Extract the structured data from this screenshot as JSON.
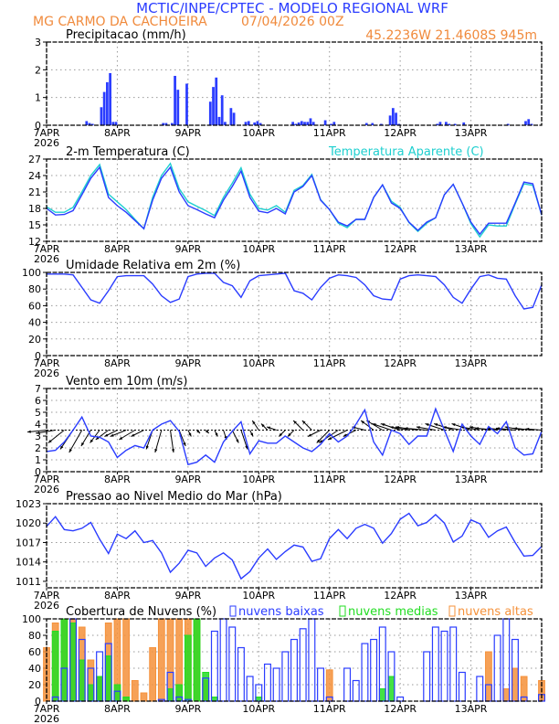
{
  "header": {
    "title": "MCTIC/INPE/CPTEC - MODELO REGIONAL WRF",
    "station": "MG CARMO DA CACHOEIRA",
    "run": "07/04/2026 00Z",
    "location": "45.2236W 21.4608S 945m"
  },
  "colors": {
    "blue": "#2a3cff",
    "cyan": "#1ecfcf",
    "green": "#22dd22",
    "orange": "#f5913a",
    "title_orange": "#f08a3c"
  },
  "x_axis": {
    "tick_labels": [
      "7APR",
      "8APR",
      "9APR",
      "10APR",
      "11APR",
      "12APR",
      "13APR"
    ],
    "year": "2026",
    "range_hours": [
      0,
      168
    ]
  },
  "chart_data": [
    {
      "type": "bar",
      "title": "Precipitacao (mm/h)",
      "ylim": [
        0,
        3
      ],
      "yticks": [
        "0",
        "1",
        "2",
        "3"
      ],
      "grid": true,
      "hours": [
        14,
        15,
        16,
        19,
        20,
        21,
        22,
        23,
        24,
        40,
        41,
        43,
        44,
        45,
        48,
        56,
        57,
        58,
        59,
        60,
        61,
        63,
        64,
        68,
        69,
        71,
        72,
        73,
        84,
        85,
        86,
        87,
        88,
        89,
        90,
        91,
        95,
        97,
        98,
        109,
        111,
        114,
        117,
        118,
        119,
        120,
        133,
        134,
        136,
        137,
        139,
        142,
        157,
        163,
        164,
        165
      ],
      "values": [
        0.15,
        0.08,
        0.05,
        0.65,
        1.2,
        1.55,
        1.88,
        0.12,
        0.12,
        0.08,
        0.08,
        0.08,
        1.78,
        1.28,
        1.5,
        0.85,
        1.38,
        1.72,
        0.3,
        1.08,
        0.12,
        0.62,
        0.45,
        0.12,
        0.15,
        0.1,
        0.15,
        0.08,
        0.12,
        0.05,
        0.1,
        0.15,
        0.12,
        0.12,
        0.25,
        0.12,
        0.18,
        0.05,
        0.12,
        0.08,
        0.08,
        0.05,
        0.35,
        0.62,
        0.45,
        0.05,
        0.05,
        0.12,
        0.12,
        0.05,
        0.05,
        0.1,
        0.05,
        0.15,
        0.22,
        0.05
      ]
    },
    {
      "type": "line",
      "title": "2-m Temperatura (C)",
      "ylim": [
        12,
        27
      ],
      "yticks": [
        "12",
        "15",
        "18",
        "21",
        "24",
        "27"
      ],
      "grid": true,
      "x_step_hours": 3,
      "series": [
        {
          "name": "2-m Temperatura (C)",
          "values": [
            18,
            16.8,
            16.9,
            17.6,
            20.5,
            23.5,
            25.5,
            20,
            18.5,
            17.3,
            15.8,
            14.3,
            19.5,
            23.5,
            25.5,
            21,
            18.5,
            17.8,
            17,
            16.3,
            19.5,
            22,
            24.8,
            20,
            17.5,
            17.2,
            18,
            17,
            21,
            22,
            24,
            19.5,
            17.8,
            15.5,
            14.8,
            16,
            16,
            20,
            22.3,
            19,
            18,
            15.5,
            14,
            15.5,
            16.3,
            20.5,
            22.4,
            19,
            15.5,
            13.3,
            15.3,
            15.3,
            15.3,
            19,
            22.8,
            22.5,
            16.8
          ]
        },
        {
          "name": "Temperatura Aparente (C)",
          "values": [
            18.3,
            17.3,
            17.3,
            18.2,
            21,
            24,
            26,
            20.6,
            19.2,
            17.8,
            16,
            14.3,
            20,
            24,
            26.2,
            21.6,
            19.2,
            18.4,
            17.6,
            16.7,
            20,
            22.6,
            25.4,
            20.6,
            18,
            17.7,
            18.5,
            17.3,
            21.3,
            22.2,
            24.2,
            19.6,
            17.8,
            15.3,
            14.5,
            16,
            16,
            20,
            22.3,
            19.3,
            18.2,
            15.4,
            13.8,
            15.3,
            16.3,
            20.5,
            22.4,
            19,
            15.2,
            12.8,
            15,
            14.8,
            14.8,
            18.8,
            22.5,
            22.2,
            16.8
          ]
        }
      ]
    },
    {
      "type": "line",
      "title": "Umidade Relativa em 2m (%)",
      "ylim": [
        0,
        100
      ],
      "yticks": [
        "0",
        "20",
        "40",
        "60",
        "80",
        "100"
      ],
      "grid": true,
      "x_step_hours": 3,
      "values": [
        98,
        98,
        98,
        97,
        82,
        67,
        63,
        78,
        95,
        96,
        96,
        96,
        86,
        72,
        64,
        68,
        95,
        98,
        99,
        99,
        88,
        84,
        70,
        90,
        96,
        97,
        98,
        99,
        78,
        75,
        67,
        82,
        93,
        97,
        96,
        94,
        85,
        72,
        68,
        67,
        92,
        96,
        97,
        96,
        95,
        85,
        70,
        63,
        80,
        95,
        97,
        93,
        92,
        72,
        56,
        58,
        85
      ]
    },
    {
      "type": "line",
      "title": "Vento em 10m (m/s)",
      "ylim": [
        0,
        7
      ],
      "yticks": [
        "0",
        "1",
        "2",
        "3",
        "4",
        "5",
        "6",
        "7"
      ],
      "grid": true,
      "x_step_hours": 3,
      "speed": [
        1.7,
        1.8,
        2.5,
        3.5,
        4.6,
        3,
        2.9,
        2.5,
        1.2,
        1.8,
        2.2,
        2.0,
        3.5,
        4.0,
        4.3,
        3.4,
        0.6,
        0.8,
        1.4,
        0.8,
        2.5,
        3.4,
        4.2,
        1.5,
        2.6,
        2.4,
        2.4,
        3.0,
        2.5,
        2.0,
        1.7,
        2.3,
        3.2,
        2.5,
        3.0,
        4.0,
        5.2,
        2.5,
        1.4,
        3.5,
        3.2,
        2.3,
        3.0,
        3.0,
        5.3,
        3.5,
        1.7,
        4.0,
        3.0,
        2.3,
        3.8,
        3.2,
        4.2,
        2.0,
        1.4,
        1.5,
        3.4
      ],
      "u": [
        -3,
        -3,
        -2.5,
        -2,
        -2,
        -1.5,
        -1.5,
        -2,
        -2,
        -2.5,
        -2.5,
        -2,
        -1,
        -1,
        0.5,
        1,
        0.5,
        0.5,
        0.5,
        0.5,
        0.5,
        1,
        1,
        0.5,
        -1,
        -1,
        -1.5,
        -1,
        -1,
        -1.5,
        -1.5,
        -2,
        -2,
        -3,
        -3,
        -2,
        -2,
        -2,
        -2.5,
        -3,
        -3,
        -3,
        -3.5,
        -3.5,
        -3,
        -3,
        -3,
        -3,
        -3,
        -3,
        -3,
        -3.5,
        -3,
        -3,
        -3,
        -3,
        -2.5
      ],
      "v": [
        -0.3,
        -0.5,
        -2,
        -3,
        -3.5,
        -2.5,
        -2,
        -1.5,
        -1,
        -1,
        -1.5,
        -1,
        -3,
        -3.5,
        -3.5,
        -2.5,
        -1,
        -0.5,
        -0.5,
        -1,
        -1.5,
        -2,
        -3,
        -1,
        1.5,
        1,
        0.5,
        -1,
        -1,
        1.5,
        1.5,
        -1,
        -2,
        -2,
        -1.5,
        -1,
        0.5,
        1.5,
        1.5,
        1,
        1,
        0.5,
        0.5,
        0.3,
        0.5,
        1,
        1,
        0.5,
        1,
        0.5,
        0.5,
        0.3,
        0.3,
        0.3,
        0.5,
        0.3,
        0.2
      ]
    },
    {
      "type": "line",
      "title": "Pressao ao Nivel Medio do Mar (hPa)",
      "ylim": [
        1010,
        1023
      ],
      "yticks": [
        "1011",
        "1014",
        "1017",
        "1020",
        "1023"
      ],
      "grid": true,
      "x_step_hours": 3,
      "values": [
        1019.5,
        1021,
        1019,
        1018.8,
        1019.2,
        1020.1,
        1017.5,
        1015.3,
        1018.3,
        1017.6,
        1018.8,
        1017,
        1017.3,
        1015.4,
        1012.4,
        1013.8,
        1015.8,
        1015.4,
        1013.3,
        1014.6,
        1015.4,
        1014.3,
        1011.4,
        1012.5,
        1014.6,
        1016,
        1014.4,
        1015.6,
        1016.6,
        1016.3,
        1014.1,
        1014.5,
        1017.6,
        1019,
        1017.6,
        1019.2,
        1019.8,
        1019.2,
        1016.9,
        1018.4,
        1020.6,
        1021.5,
        1019.6,
        1020.1,
        1021.3,
        1020,
        1017.1,
        1018,
        1020.5,
        1019.9,
        1017.8,
        1018.8,
        1019.4,
        1017,
        1014.9,
        1015,
        1016.4
      ]
    },
    {
      "type": "bar",
      "title": "Cobertura de Nuvens (%)",
      "ylim": [
        0,
        100
      ],
      "yticks": [
        "0",
        "20",
        "40",
        "60",
        "80",
        "100"
      ],
      "grid": true,
      "x_step_hours": 3,
      "series": [
        {
          "name": "nuvens baixas",
          "values": [
            0,
            5,
            40,
            100,
            75,
            40,
            60,
            70,
            12,
            0,
            0,
            0,
            0,
            2,
            35,
            5,
            2,
            0,
            28,
            85,
            100,
            90,
            65,
            30,
            20,
            45,
            40,
            60,
            75,
            88,
            100,
            40,
            5,
            0,
            40,
            25,
            70,
            75,
            90,
            60,
            5,
            0,
            0,
            60,
            90,
            85,
            90,
            35,
            0,
            30,
            20,
            80,
            100,
            75,
            5,
            0,
            8
          ]
        },
        {
          "name": "nuvens medias",
          "values": [
            0,
            85,
            100,
            95,
            50,
            20,
            30,
            55,
            20,
            5,
            0,
            0,
            0,
            0,
            15,
            20,
            80,
            100,
            35,
            5,
            0,
            0,
            0,
            0,
            5,
            0,
            0,
            0,
            0,
            0,
            0,
            0,
            0,
            0,
            0,
            0,
            0,
            0,
            15,
            30,
            0,
            0,
            0,
            0,
            0,
            0,
            0,
            0,
            0,
            0,
            0,
            0,
            0,
            0,
            0,
            0,
            0
          ]
        },
        {
          "name": "nuvens altas",
          "values": [
            65,
            95,
            100,
            100,
            90,
            50,
            30,
            95,
            100,
            100,
            25,
            10,
            65,
            100,
            100,
            100,
            100,
            100,
            25,
            0,
            0,
            0,
            0,
            0,
            0,
            0,
            0,
            0,
            0,
            0,
            0,
            0,
            38,
            0,
            0,
            0,
            0,
            0,
            0,
            0,
            0,
            0,
            0,
            0,
            0,
            0,
            0,
            0,
            0,
            0,
            60,
            0,
            15,
            40,
            30,
            0,
            25
          ]
        }
      ]
    }
  ]
}
